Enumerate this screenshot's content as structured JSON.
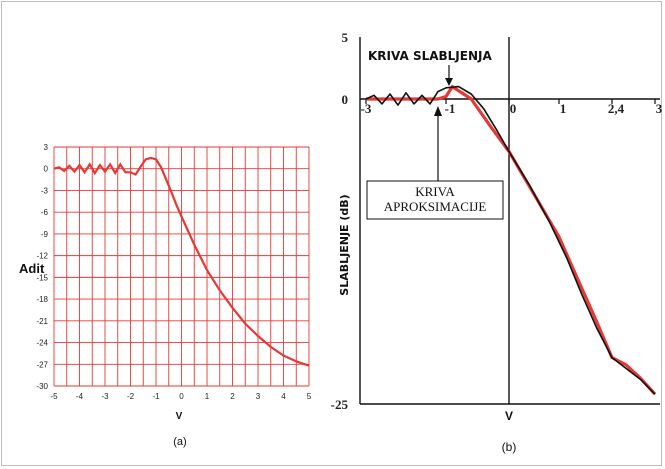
{
  "chart_data": [
    {
      "type": "line",
      "panel_caption": "(a)",
      "xlabel": "V",
      "ylabel": "Adit",
      "xlim": [
        -5,
        5
      ],
      "ylim": [
        -30,
        3
      ],
      "x_ticks": [
        -5,
        -4.5,
        -4,
        -3.5,
        -3,
        -2.5,
        -2,
        -1.5,
        -1,
        -0.5,
        0,
        0.5,
        1,
        1.5,
        2,
        2.5,
        3,
        3.5,
        4,
        4.5,
        5
      ],
      "x_tick_labels": [
        "-5",
        "-4",
        "-3",
        "-2",
        "-1",
        "0",
        "1",
        "2",
        "3",
        "4",
        "5"
      ],
      "y_tick_labels": [
        "3",
        "0",
        "-3",
        "-6",
        "-9",
        "-12",
        "-15",
        "-18",
        "-21",
        "-24",
        "-27",
        "-30"
      ],
      "y_ticks": [
        3,
        0,
        -3,
        -6,
        -9,
        -12,
        -15,
        -18,
        -21,
        -24,
        -27,
        -30
      ],
      "grid": true,
      "color": "#e53935",
      "series": [
        {
          "x": [
            -5,
            -4.8,
            -4.6,
            -4.4,
            -4.2,
            -4,
            -3.8,
            -3.6,
            -3.4,
            -3.2,
            -3,
            -2.8,
            -2.6,
            -2.4,
            -2.2,
            -2,
            -1.8,
            -1.6,
            -1.4,
            -1.2,
            -1,
            -0.8,
            -0.6,
            -0.4,
            -0.2,
            0,
            0.5,
            1,
            1.5,
            2,
            2.5,
            3,
            3.5,
            4,
            4.5,
            5
          ],
          "y": [
            0,
            0.2,
            -0.3,
            0.4,
            -0.4,
            0.5,
            -0.5,
            0.6,
            -0.6,
            0.5,
            -0.4,
            0.6,
            -0.6,
            0.6,
            -0.5,
            -0.5,
            -0.8,
            0.3,
            1.3,
            1.5,
            1.3,
            0.2,
            -1.5,
            -3.2,
            -5.0,
            -6.6,
            -10.5,
            -14,
            -16.8,
            -19.2,
            -21.4,
            -23.1,
            -24.6,
            -25.8,
            -26.6,
            -27.2
          ]
        }
      ]
    },
    {
      "type": "line",
      "panel_caption": "(b)",
      "xlabel": "V",
      "ylabel": "SLABLJENJE (dB)",
      "xlim": [
        -3,
        3
      ],
      "ylim": [
        -25,
        5
      ],
      "x_tick_labels": [
        "-3",
        "-1",
        "0",
        "1",
        "2,4",
        "3"
      ],
      "y_tick_labels": [
        "5",
        "0",
        "-25"
      ],
      "annotations": [
        "KRIVA SLABLJENJA",
        "KRIVA\nAPROKSIMACIJE"
      ],
      "series": [
        {
          "name": "KRIVA SLABLJENJA",
          "color": "#111111",
          "x": [
            -3,
            -2.8,
            -2.6,
            -2.4,
            -2.2,
            -2.0,
            -1.8,
            -1.6,
            -1.4,
            -1.2,
            -1.0,
            -0.8,
            -0.6,
            -0.4,
            -0.2,
            0,
            0.4,
            0.8,
            1.2,
            1.6,
            2.0,
            2.4,
            2.8,
            3.0
          ],
          "y": [
            0,
            0.3,
            -0.4,
            0.4,
            -0.5,
            0.5,
            -0.4,
            0.3,
            -0.4,
            0.6,
            0.9,
            1.0,
            0.4,
            -0.8,
            -2.5,
            -4.3,
            -7.0,
            -10.0,
            -13.0,
            -16.0,
            -18.8,
            -21.2,
            -23.0,
            -24.2
          ]
        },
        {
          "name": "KRIVA APROKSIMACIJE",
          "color": "#e53935",
          "x": [
            -3,
            -2.0,
            -1.5,
            -1.2,
            -1.0,
            -0.9,
            -0.6,
            -0.3,
            0,
            0.5,
            1.0,
            1.5,
            2.0,
            2.4,
            2.6,
            2.8,
            3.0
          ],
          "y": [
            0,
            0,
            0,
            0,
            0.2,
            1.0,
            0,
            -2.2,
            -4.3,
            -7.8,
            -11.3,
            -14.8,
            -18.3,
            -21.2,
            -21.8,
            -22.9,
            -24.2
          ]
        }
      ]
    }
  ]
}
